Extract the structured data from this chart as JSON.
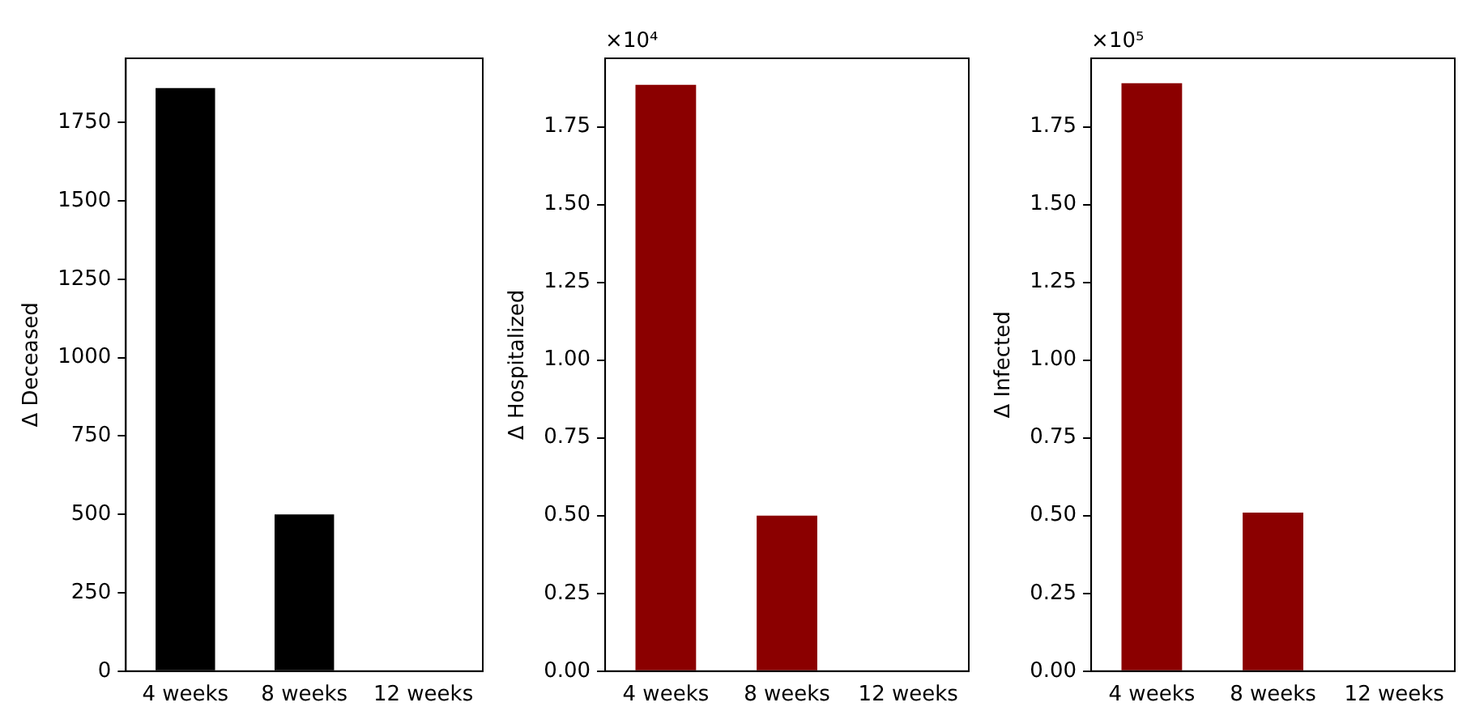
{
  "chart_data": [
    {
      "type": "bar",
      "ylabel": "Δ Deceased",
      "categories": [
        "4 weeks",
        "8 weeks",
        "12 weeks"
      ],
      "values": [
        1860,
        500,
        0
      ],
      "color": "#000000",
      "ylim": [
        0,
        1955
      ],
      "yticks": [
        0,
        250,
        500,
        750,
        1000,
        1250,
        1500,
        1750
      ],
      "grid": false,
      "legend": false
    },
    {
      "type": "bar",
      "ylabel": "Δ Hospitalized",
      "categories": [
        "4 weeks",
        "8 weeks",
        "12 weeks"
      ],
      "values": [
        1.885,
        0.5,
        0
      ],
      "color": "#8b0000",
      "ylim": [
        0,
        1.97
      ],
      "yticks": [
        {
          "value": 0,
          "label": "0.00"
        },
        {
          "value": 0.25,
          "label": "0.25"
        },
        {
          "value": 0.5,
          "label": "0.50"
        },
        {
          "value": 0.75,
          "label": "0.75"
        },
        {
          "value": 1,
          "label": "1.00"
        },
        {
          "value": 1.25,
          "label": "1.25"
        },
        {
          "value": 1.5,
          "label": "1.50"
        },
        {
          "value": 1.75,
          "label": "1.75"
        }
      ],
      "annotations": [
        "×10⁴"
      ],
      "grid": false,
      "legend": false
    },
    {
      "type": "bar",
      "ylabel": "Δ Infected",
      "categories": [
        "4 weeks",
        "8 weeks",
        "12 weeks"
      ],
      "values": [
        1.89,
        0.51,
        0
      ],
      "color": "#8b0000",
      "ylim": [
        0,
        1.97
      ],
      "yticks": [
        {
          "value": 0,
          "label": "0.00"
        },
        {
          "value": 0.25,
          "label": "0.25"
        },
        {
          "value": 0.5,
          "label": "0.50"
        },
        {
          "value": 0.75,
          "label": "0.75"
        },
        {
          "value": 1,
          "label": "1.00"
        },
        {
          "value": 1.25,
          "label": "1.25"
        },
        {
          "value": 1.5,
          "label": "1.50"
        },
        {
          "value": 1.75,
          "label": "1.75"
        }
      ],
      "annotations": [
        "×10⁵"
      ],
      "grid": false,
      "legend": false
    }
  ]
}
